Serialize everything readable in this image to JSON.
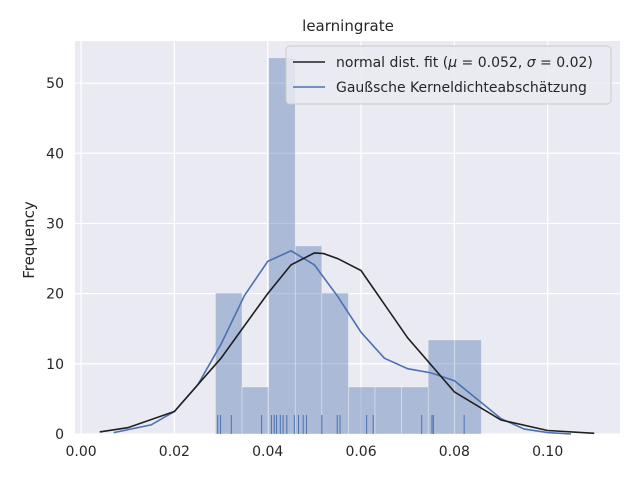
{
  "chart_data": {
    "type": "bar",
    "title": "learningrate",
    "xlabel": "",
    "ylabel": "Frequency",
    "xlim": [
      -0.0013,
      0.1155
    ],
    "ylim": [
      0,
      56
    ],
    "x_ticks": [
      "0.00",
      "0.02",
      "0.04",
      "0.06",
      "0.08",
      "0.10"
    ],
    "x_tick_values": [
      0.0,
      0.02,
      0.04,
      0.06,
      0.08,
      0.1
    ],
    "y_ticks": [
      "0",
      "10",
      "20",
      "30",
      "40",
      "50"
    ],
    "y_tick_values": [
      0,
      10,
      20,
      30,
      40,
      50
    ],
    "grid": true,
    "legend_position": "top-right",
    "histogram": {
      "bin_edges": [
        0.0288,
        0.0345,
        0.0402,
        0.0459,
        0.0516,
        0.0573,
        0.063,
        0.0687,
        0.0744,
        0.0801,
        0.0858
      ],
      "values": [
        20.1,
        6.7,
        53.6,
        26.8,
        20.1,
        6.7,
        6.7,
        6.7,
        13.4,
        13.4
      ]
    },
    "rug": [
      0.0293,
      0.0299,
      0.0322,
      0.0387,
      0.0408,
      0.0414,
      0.0419,
      0.0427,
      0.0433,
      0.0441,
      0.0457,
      0.0466,
      0.0476,
      0.0483,
      0.0516,
      0.0549,
      0.0555,
      0.0612,
      0.0626,
      0.073,
      0.0752,
      0.0755,
      0.0821
    ],
    "series": [
      {
        "name": "normal dist. fit ($\\mu=0.052$, $\\sigma=0.02$)",
        "kind": "line",
        "color": "#1f1f1f",
        "x": [
          0.004,
          0.01,
          0.02,
          0.03,
          0.04,
          0.045,
          0.05,
          0.052,
          0.055,
          0.06,
          0.07,
          0.08,
          0.09,
          0.1,
          0.11
        ],
        "y": [
          0.3,
          0.9,
          3.2,
          10.8,
          20.0,
          24.1,
          25.8,
          25.7,
          25.0,
          23.3,
          13.7,
          6.0,
          2.0,
          0.5,
          0.1
        ]
      },
      {
        "name": "Gaußsche Kerneldichteabschätzung",
        "kind": "line",
        "color": "#4c72b0",
        "x": [
          0.007,
          0.015,
          0.02,
          0.025,
          0.03,
          0.035,
          0.04,
          0.045,
          0.05,
          0.055,
          0.06,
          0.065,
          0.07,
          0.075,
          0.08,
          0.085,
          0.09,
          0.095,
          0.1,
          0.105
        ],
        "y": [
          0.2,
          1.3,
          3.2,
          7.0,
          12.8,
          19.7,
          24.6,
          26.1,
          24.1,
          19.6,
          14.5,
          10.8,
          9.3,
          8.7,
          7.6,
          4.9,
          2.2,
          0.7,
          0.2,
          0.0
        ]
      }
    ],
    "colors": {
      "plot_background": "#eaeaf2",
      "grid": "#ffffff",
      "bars": "#4c72b0",
      "normal_fit": "#1f1f1f",
      "kde": "#4c72b0"
    }
  },
  "legend": {
    "normal_prefix": "normal dist. fit (",
    "mu_symbol": "μ",
    "mu_rest": " = 0.052, ",
    "sigma_symbol": "σ",
    "sigma_rest": " = 0.02)",
    "kde_label": "Gaußsche Kerneldichteabschätzung"
  }
}
